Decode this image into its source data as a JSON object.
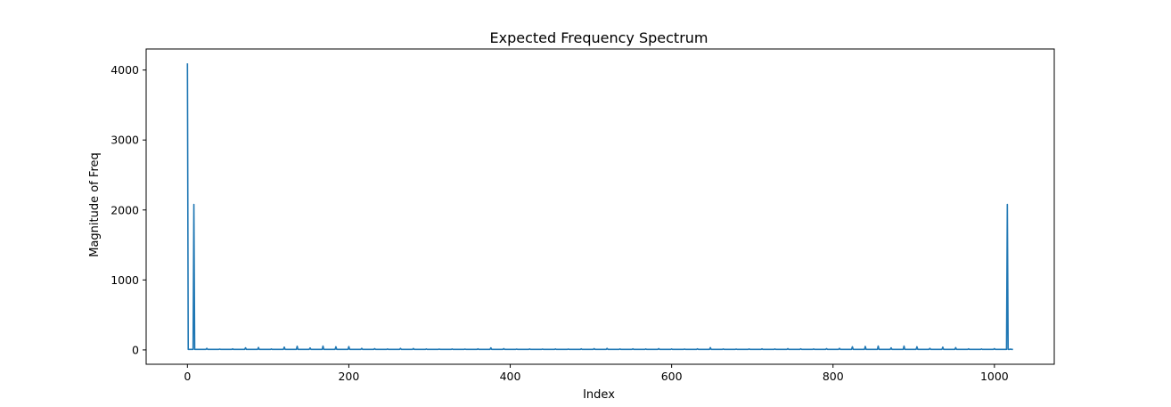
{
  "chart_data": {
    "type": "line",
    "title": "Expected Frequency Spectrum",
    "xlabel": "Index",
    "ylabel": "Magnitude of Freq",
    "xlim": [
      -51.15,
      1074.15
    ],
    "ylim": [
      -204.8,
      4300.8
    ],
    "x_ticks": [
      0,
      200,
      400,
      600,
      800,
      1000
    ],
    "y_ticks": [
      0,
      1000,
      2000,
      3000,
      4000
    ],
    "grid": false,
    "legend": "none",
    "series": [
      {
        "color": "#1f77b4",
        "n_points": 1024,
        "baseline": 8,
        "peaks": [
          [
            0,
            4096
          ],
          [
            8,
            2080
          ],
          [
            24,
            22
          ],
          [
            40,
            12
          ],
          [
            56,
            15
          ],
          [
            72,
            30
          ],
          [
            88,
            35
          ],
          [
            104,
            14
          ],
          [
            120,
            40
          ],
          [
            136,
            52
          ],
          [
            152,
            28
          ],
          [
            168,
            55
          ],
          [
            184,
            45
          ],
          [
            200,
            48
          ],
          [
            216,
            22
          ],
          [
            232,
            18
          ],
          [
            248,
            14
          ],
          [
            264,
            22
          ],
          [
            280,
            20
          ],
          [
            296,
            14
          ],
          [
            312,
            12
          ],
          [
            328,
            14
          ],
          [
            344,
            12
          ],
          [
            360,
            15
          ],
          [
            376,
            30
          ],
          [
            392,
            18
          ],
          [
            408,
            12
          ],
          [
            424,
            14
          ],
          [
            440,
            12
          ],
          [
            456,
            14
          ],
          [
            472,
            12
          ],
          [
            488,
            16
          ],
          [
            504,
            18
          ],
          [
            520,
            22
          ],
          [
            536,
            14
          ],
          [
            552,
            16
          ],
          [
            568,
            14
          ],
          [
            584,
            18
          ],
          [
            600,
            14
          ],
          [
            616,
            12
          ],
          [
            632,
            16
          ],
          [
            648,
            32
          ],
          [
            664,
            14
          ],
          [
            680,
            12
          ],
          [
            696,
            14
          ],
          [
            712,
            16
          ],
          [
            728,
            14
          ],
          [
            744,
            18
          ],
          [
            760,
            16
          ],
          [
            776,
            14
          ],
          [
            792,
            18
          ],
          [
            808,
            22
          ],
          [
            824,
            45
          ],
          [
            840,
            50
          ],
          [
            856,
            55
          ],
          [
            872,
            30
          ],
          [
            888,
            55
          ],
          [
            904,
            45
          ],
          [
            920,
            22
          ],
          [
            936,
            40
          ],
          [
            952,
            32
          ],
          [
            968,
            15
          ],
          [
            984,
            14
          ],
          [
            1000,
            18
          ],
          [
            1016,
            2080
          ],
          [
            1020,
            12
          ]
        ]
      }
    ]
  }
}
